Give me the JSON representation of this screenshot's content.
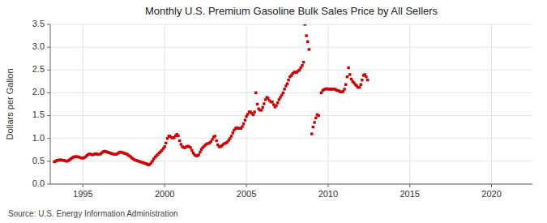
{
  "chart_data": {
    "type": "scatter",
    "title": "Monthly U.S. Premium Gasoline Bulk Sales Price by All Sellers",
    "y_label": "Dollars per Gallon",
    "annotations": [
      "Source: U.S. Energy Information Administration"
    ],
    "color": "#CC0000",
    "marker": "square",
    "grid": true,
    "xlim": [
      1993.0,
      2022.5
    ],
    "ylim": [
      0.0,
      3.5
    ],
    "xticks": [
      1995,
      2000,
      2005,
      2010,
      2015,
      2020
    ],
    "yticks": [
      {
        "value": 0.0,
        "label": "0.0"
      },
      0.5,
      {
        "value": 1.0,
        "label": "1.0"
      },
      1.5,
      {
        "value": 2.0,
        "label": "2.0"
      },
      2.5,
      {
        "value": 3.0,
        "label": "3.0"
      },
      3.5
    ],
    "x": [
      1993.25,
      1993.33,
      1993.42,
      1993.5,
      1993.58,
      1993.67,
      1993.75,
      1993.83,
      1993.92,
      1994.0,
      1994.08,
      1994.17,
      1994.25,
      1994.33,
      1994.42,
      1994.5,
      1994.58,
      1994.67,
      1994.75,
      1994.83,
      1994.92,
      1995.0,
      1995.08,
      1995.17,
      1995.25,
      1995.33,
      1995.42,
      1995.5,
      1995.58,
      1995.67,
      1995.75,
      1995.83,
      1995.92,
      1996.0,
      1996.08,
      1996.17,
      1996.25,
      1996.33,
      1996.42,
      1996.5,
      1996.58,
      1996.67,
      1996.75,
      1996.83,
      1996.92,
      1997.0,
      1997.08,
      1997.17,
      1997.25,
      1997.33,
      1997.42,
      1997.5,
      1997.58,
      1997.67,
      1997.75,
      1997.83,
      1997.92,
      1998.0,
      1998.08,
      1998.17,
      1998.25,
      1998.33,
      1998.42,
      1998.5,
      1998.58,
      1998.67,
      1998.75,
      1998.83,
      1998.92,
      1999.0,
      1999.08,
      1999.17,
      1999.25,
      1999.33,
      1999.42,
      1999.5,
      1999.58,
      1999.67,
      1999.75,
      1999.83,
      1999.92,
      2000.0,
      2000.08,
      2000.17,
      2000.25,
      2000.33,
      2000.42,
      2000.5,
      2000.58,
      2000.67,
      2000.75,
      2000.83,
      2000.92,
      2001.0,
      2001.08,
      2001.17,
      2001.25,
      2001.33,
      2001.42,
      2001.5,
      2001.58,
      2001.67,
      2001.75,
      2001.83,
      2001.92,
      2002.0,
      2002.08,
      2002.17,
      2002.25,
      2002.33,
      2002.42,
      2002.5,
      2002.58,
      2002.67,
      2002.75,
      2002.83,
      2002.92,
      2003.0,
      2003.08,
      2003.17,
      2003.25,
      2003.33,
      2003.42,
      2003.5,
      2003.58,
      2003.67,
      2003.75,
      2003.83,
      2003.92,
      2004.0,
      2004.08,
      2004.17,
      2004.25,
      2004.33,
      2004.42,
      2004.5,
      2004.58,
      2004.67,
      2004.75,
      2004.83,
      2004.92,
      2005.0,
      2005.08,
      2005.17,
      2005.25,
      2005.33,
      2005.42,
      2005.5,
      2005.58,
      2005.67,
      2005.75,
      2005.83,
      2005.92,
      2006.0,
      2006.08,
      2006.17,
      2006.25,
      2006.33,
      2006.42,
      2006.5,
      2006.58,
      2006.67,
      2006.75,
      2006.83,
      2006.92,
      2007.0,
      2007.08,
      2007.17,
      2007.25,
      2007.33,
      2007.42,
      2007.5,
      2007.58,
      2007.67,
      2007.75,
      2007.83,
      2007.92,
      2008.0,
      2008.08,
      2008.17,
      2008.25,
      2008.33,
      2008.42,
      2008.5,
      2008.58,
      2008.67,
      2008.75,
      2008.83,
      2009.0,
      2009.08,
      2009.17,
      2009.25,
      2009.33,
      2009.42,
      2009.58,
      2009.67,
      2009.75,
      2009.83,
      2009.92,
      2010.0,
      2010.08,
      2010.17,
      2010.25,
      2010.33,
      2010.42,
      2010.5,
      2010.58,
      2010.67,
      2010.75,
      2010.83,
      2010.92,
      2011.0,
      2011.08,
      2011.17,
      2011.25,
      2011.33,
      2011.42,
      2011.5,
      2011.58,
      2011.67,
      2011.75,
      2011.83,
      2011.92,
      2012.0,
      2012.08,
      2012.17,
      2012.25,
      2012.33,
      2012.42
    ],
    "values": [
      0.49,
      0.5,
      0.52,
      0.52,
      0.53,
      0.53,
      0.52,
      0.52,
      0.51,
      0.5,
      0.51,
      0.53,
      0.55,
      0.57,
      0.59,
      0.6,
      0.6,
      0.6,
      0.59,
      0.58,
      0.57,
      0.57,
      0.58,
      0.6,
      0.63,
      0.65,
      0.66,
      0.65,
      0.64,
      0.65,
      0.66,
      0.66,
      0.65,
      0.65,
      0.66,
      0.69,
      0.71,
      0.72,
      0.71,
      0.7,
      0.69,
      0.68,
      0.67,
      0.66,
      0.65,
      0.65,
      0.66,
      0.68,
      0.7,
      0.7,
      0.69,
      0.68,
      0.67,
      0.66,
      0.64,
      0.62,
      0.6,
      0.57,
      0.55,
      0.53,
      0.52,
      0.51,
      0.5,
      0.49,
      0.48,
      0.47,
      0.46,
      0.45,
      0.44,
      0.42,
      0.43,
      0.46,
      0.5,
      0.55,
      0.59,
      0.62,
      0.65,
      0.68,
      0.71,
      0.74,
      0.78,
      0.82,
      0.9,
      1.0,
      1.05,
      1.05,
      1.02,
      1.01,
      1.02,
      1.06,
      1.09,
      1.06,
      0.95,
      0.87,
      0.82,
      0.8,
      0.8,
      0.82,
      0.83,
      0.82,
      0.8,
      0.74,
      0.68,
      0.64,
      0.62,
      0.62,
      0.64,
      0.7,
      0.76,
      0.8,
      0.83,
      0.86,
      0.88,
      0.89,
      0.9,
      0.93,
      0.98,
      1.03,
      1.05,
      0.95,
      0.86,
      0.82,
      0.82,
      0.84,
      0.87,
      0.89,
      0.9,
      0.92,
      0.96,
      1.0,
      1.05,
      1.12,
      1.18,
      1.22,
      1.23,
      1.22,
      1.22,
      1.22,
      1.26,
      1.32,
      1.4,
      1.48,
      1.53,
      1.58,
      1.58,
      1.55,
      1.52,
      1.58,
      2.0,
      1.75,
      1.65,
      1.62,
      1.62,
      1.68,
      1.76,
      1.85,
      1.9,
      1.88,
      1.83,
      1.8,
      1.8,
      1.74,
      1.69,
      1.72,
      1.78,
      1.85,
      1.9,
      1.95,
      2.0,
      2.08,
      2.15,
      2.2,
      2.28,
      2.35,
      2.38,
      2.42,
      2.45,
      2.45,
      2.45,
      2.48,
      2.5,
      2.55,
      2.6,
      2.67,
      3.5,
      3.25,
      3.12,
      2.95,
      1.1,
      1.25,
      1.35,
      1.45,
      1.52,
      1.5,
      2.0,
      2.05,
      2.07,
      2.08,
      2.09,
      2.08,
      2.08,
      2.08,
      2.08,
      2.08,
      2.08,
      2.06,
      2.05,
      2.04,
      2.02,
      2.02,
      2.03,
      2.08,
      2.18,
      2.35,
      2.55,
      2.4,
      2.3,
      2.25,
      2.22,
      2.18,
      2.15,
      2.12,
      2.12,
      2.18,
      2.28,
      2.38,
      2.4,
      2.35,
      2.28
    ]
  }
}
